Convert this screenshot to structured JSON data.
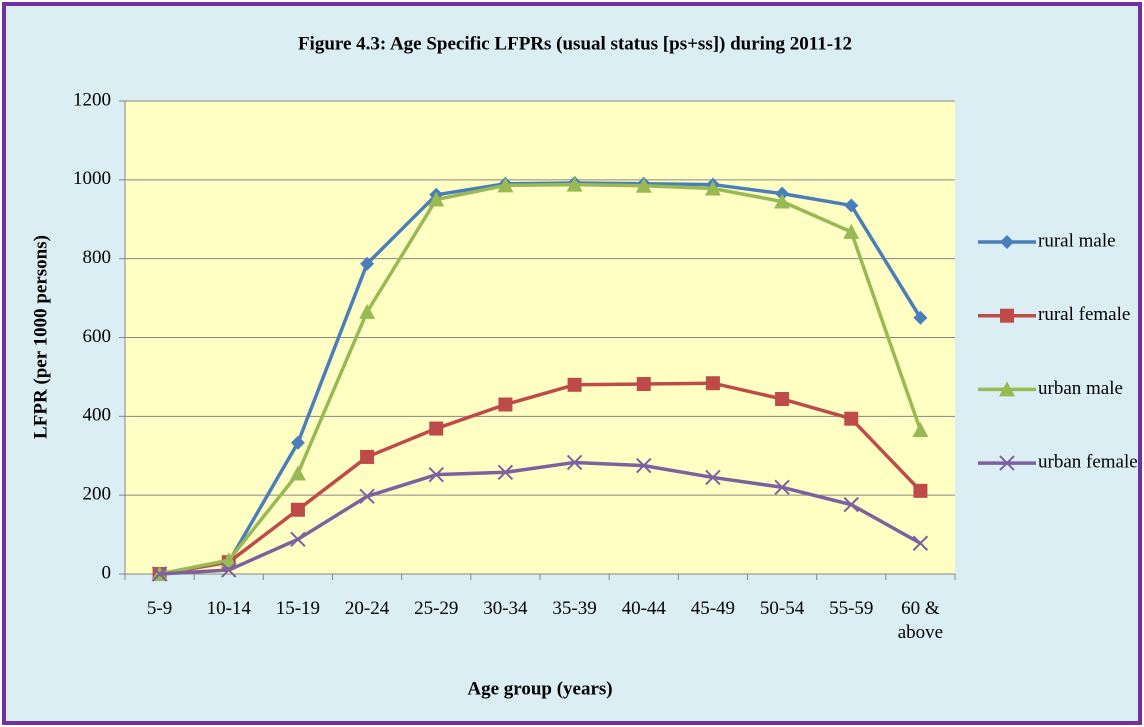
{
  "chart_data": {
    "type": "line",
    "title": "Figure 4.3: Age Specific LFPRs (usual status [ps+ss]) during 2011-12",
    "x_label": "Age group (years)",
    "y_label": "LFPR (per 1000 persons)",
    "categories": [
      "5-9",
      "10-14",
      "15-19",
      "20-24",
      "25-29",
      "30-34",
      "35-39",
      "40-44",
      "45-49",
      "50-54",
      "55-59",
      "60 & above"
    ],
    "series": [
      {
        "name": "rural male",
        "color": "#4a7ebb",
        "marker": "diamond",
        "values": [
          0,
          30,
          333,
          787,
          962,
          990,
          992,
          990,
          988,
          965,
          935,
          650
        ]
      },
      {
        "name": "rural female",
        "color": "#be4b48",
        "marker": "square",
        "values": [
          0,
          30,
          163,
          297,
          369,
          430,
          480,
          482,
          484,
          444,
          394,
          211
        ]
      },
      {
        "name": "urban male",
        "color": "#98b954",
        "marker": "triangle",
        "values": [
          0,
          35,
          255,
          665,
          950,
          986,
          988,
          985,
          978,
          945,
          868,
          365
        ]
      },
      {
        "name": "urban female",
        "color": "#7d60a0",
        "marker": "x",
        "values": [
          0,
          10,
          88,
          197,
          252,
          258,
          283,
          275,
          245,
          220,
          176,
          78
        ]
      }
    ],
    "ylim": [
      0,
      1200
    ],
    "yticks": [
      0,
      200,
      400,
      600,
      800,
      1000,
      1200
    ],
    "grid": true,
    "legend": "right"
  }
}
